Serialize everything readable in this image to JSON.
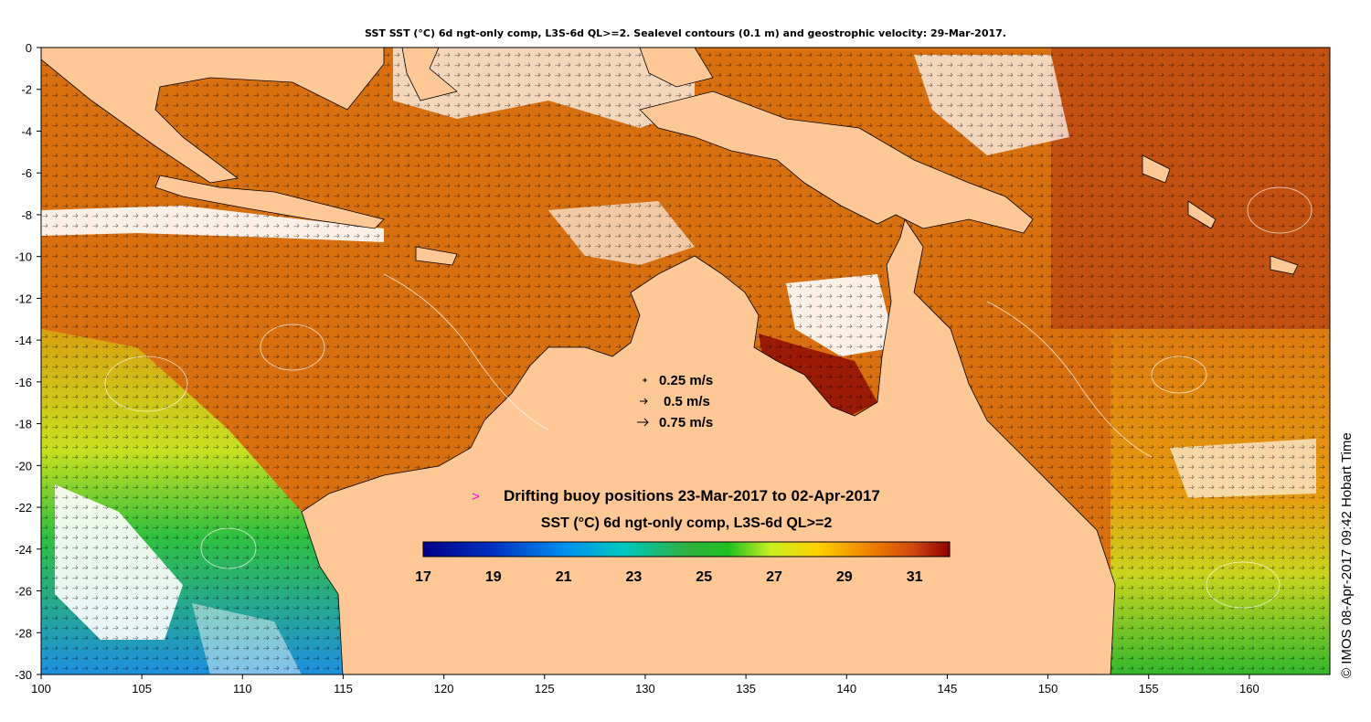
{
  "title": "SST SST (°C) 6d ngt-only comp, L3S-6d QL>=2. Sealevel contours (0.1 m) and geostrophic velocity: 29-Mar-2017.",
  "axes": {
    "x_ticks": [
      "100",
      "105",
      "110",
      "115",
      "120",
      "125",
      "130",
      "135",
      "140",
      "145",
      "150",
      "155",
      "160"
    ],
    "y_ticks": [
      "0",
      "-2",
      "-4",
      "-6",
      "-8",
      "-10",
      "-12",
      "-14",
      "-16",
      "-18",
      "-20",
      "-22",
      "-24",
      "-26",
      "-28",
      "-30"
    ],
    "lon_range": [
      100,
      164
    ],
    "lat_range": [
      -30,
      0
    ]
  },
  "velocity_legend": {
    "items": [
      "0.25 m/s",
      "0.5 m/s",
      "0.75 m/s"
    ]
  },
  "buoy_legend": {
    "marker": ">",
    "label": "Drifting buoy positions 23-Mar-2017 to 02-Apr-2017",
    "marker_color": "#ff00ff"
  },
  "colorbar": {
    "title": "SST (°C) 6d ngt-only comp, L3S-6d QL>=2",
    "ticks": [
      "17",
      "19",
      "21",
      "23",
      "25",
      "27",
      "29",
      "31"
    ],
    "range": [
      17,
      32
    ]
  },
  "colors": {
    "land": "#fec896",
    "ocean_warm": "#d9700f",
    "ocean_hot": "#b8450a",
    "ocean_cool": "#38c84a",
    "ocean_cold": "#1e90e0",
    "no_data": "#ffffff"
  },
  "credit": "© IMOS 08-Apr-2017 09:42 Hobart Time"
}
